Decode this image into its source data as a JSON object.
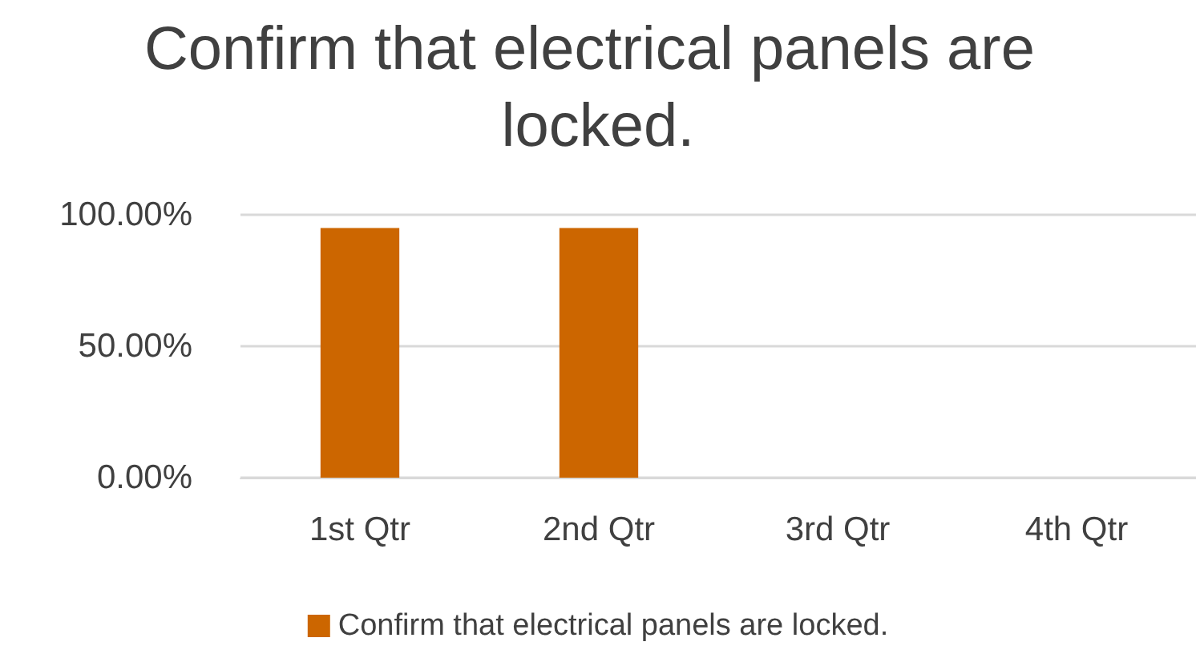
{
  "chart_data": {
    "type": "bar",
    "title": "Confirm that electrical panels are locked.",
    "categories": [
      "1st Qtr",
      "2nd Qtr",
      "3rd Qtr",
      "4th Qtr"
    ],
    "series": [
      {
        "name": "Confirm that electrical panels are locked.",
        "color": "#cc6600",
        "values": [
          95,
          95,
          null,
          null
        ]
      }
    ],
    "ylim": [
      0,
      100
    ],
    "yticks": [
      {
        "value": 0,
        "label": "0.00%"
      },
      {
        "value": 50,
        "label": "50.00%"
      },
      {
        "value": 100,
        "label": "100.00%"
      }
    ],
    "grid": "y",
    "legend": "bottom"
  }
}
